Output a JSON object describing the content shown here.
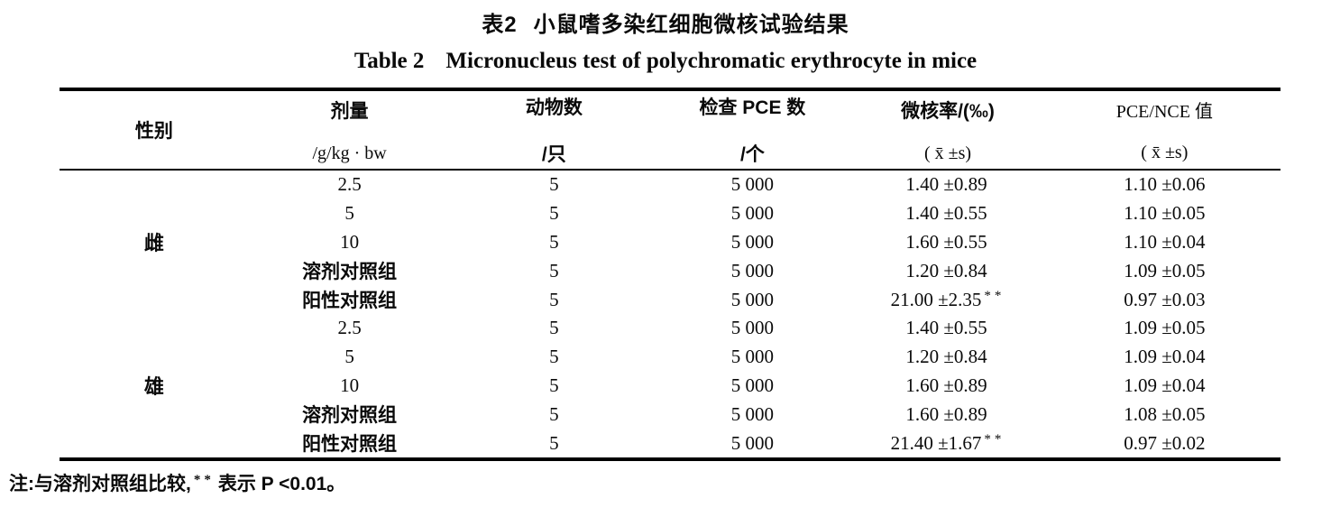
{
  "page": {
    "title_zh_label": "表2",
    "title_zh_text": "小鼠嗜多染红细胞微核试验结果",
    "title_en_label": "Table 2",
    "title_en_text": "Micronucleus test of polychromatic erythrocyte in mice"
  },
  "table": {
    "header": {
      "gender": "性别",
      "dose_title": "剂量",
      "dose_unit": "/g/kg · bw",
      "animals_title": "动物数",
      "animals_unit": "/只",
      "pce_title": "检查 PCE 数",
      "pce_unit": "/个",
      "mn_title": "微核率/(‰)",
      "mn_unit": "( x̄ ±s)",
      "ratio_title": "PCE/NCE 值",
      "ratio_unit": "( x̄ ±s)"
    },
    "rows": [
      {
        "gender": "雌",
        "dose": "2.5",
        "animals": "5",
        "pce": "5 000",
        "mn": "1.40 ±0.89",
        "mn_mark": "",
        "ratio": "1.10 ±0.06"
      },
      {
        "dose": "5",
        "animals": "5",
        "pce": "5 000",
        "mn": "1.40 ±0.55",
        "mn_mark": "",
        "ratio": "1.10 ±0.05"
      },
      {
        "dose": "10",
        "animals": "5",
        "pce": "5 000",
        "mn": "1.60 ±0.55",
        "mn_mark": "",
        "ratio": "1.10 ±0.04"
      },
      {
        "dose": "溶剂对照组",
        "animals": "5",
        "pce": "5 000",
        "mn": "1.20 ±0.84",
        "mn_mark": "",
        "ratio": "1.09 ±0.05"
      },
      {
        "dose": "阳性对照组",
        "animals": "5",
        "pce": "5 000",
        "mn": "21.00 ±2.35",
        "mn_mark": "**",
        "ratio": "0.97 ±0.03"
      },
      {
        "gender": "雄",
        "dose": "2.5",
        "animals": "5",
        "pce": "5 000",
        "mn": "1.40 ±0.55",
        "mn_mark": "",
        "ratio": "1.09 ±0.05"
      },
      {
        "dose": "5",
        "animals": "5",
        "pce": "5 000",
        "mn": "1.20 ±0.84",
        "mn_mark": "",
        "ratio": "1.09 ±0.04"
      },
      {
        "dose": "10",
        "animals": "5",
        "pce": "5 000",
        "mn": "1.60 ±0.89",
        "mn_mark": "",
        "ratio": "1.09 ±0.04"
      },
      {
        "dose": "溶剂对照组",
        "animals": "5",
        "pce": "5 000",
        "mn": "1.60 ±0.89",
        "mn_mark": "",
        "ratio": "1.08 ±0.05"
      },
      {
        "dose": "阳性对照组",
        "animals": "5",
        "pce": "5 000",
        "mn": "21.40 ±1.67",
        "mn_mark": "**",
        "ratio": "0.97 ±0.02"
      }
    ]
  },
  "footnote": {
    "prefix": "注:与溶剂对照组比较,",
    "mark": "**",
    "suffix": "表示 P <0.01。"
  }
}
